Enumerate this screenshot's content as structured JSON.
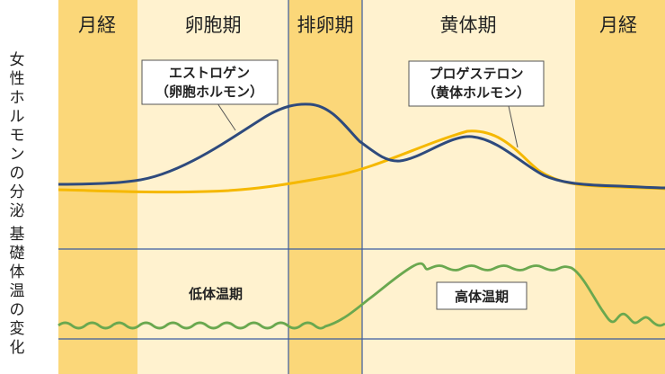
{
  "phases": [
    {
      "label": "月経",
      "color": "#fbd779"
    },
    {
      "label": "卵胞期",
      "color": "#fff2cf"
    },
    {
      "label": "排卵期",
      "color": "#fbd779"
    },
    {
      "label": "黄体期",
      "color": "#fff2cf"
    },
    {
      "label": "月経",
      "color": "#fbd779"
    }
  ],
  "side_labels": {
    "hormone": "女性ホルモンの分泌",
    "temperature": "基礎体温の変化"
  },
  "callouts": {
    "estrogen": {
      "line1": "エストロゲン",
      "line2": "（卵胞ホルモン）"
    },
    "progesterone": {
      "line1": "プロゲステロン",
      "line2": "（黄体ホルモン）"
    }
  },
  "temperature_labels": {
    "low": "低体温期",
    "high": "高体温期"
  },
  "colors": {
    "estrogen_line": "#2e4a7d",
    "progesterone_line": "#f5b800",
    "temperature_line": "#6aa84f",
    "grid_line": "#3a5ba0"
  }
}
